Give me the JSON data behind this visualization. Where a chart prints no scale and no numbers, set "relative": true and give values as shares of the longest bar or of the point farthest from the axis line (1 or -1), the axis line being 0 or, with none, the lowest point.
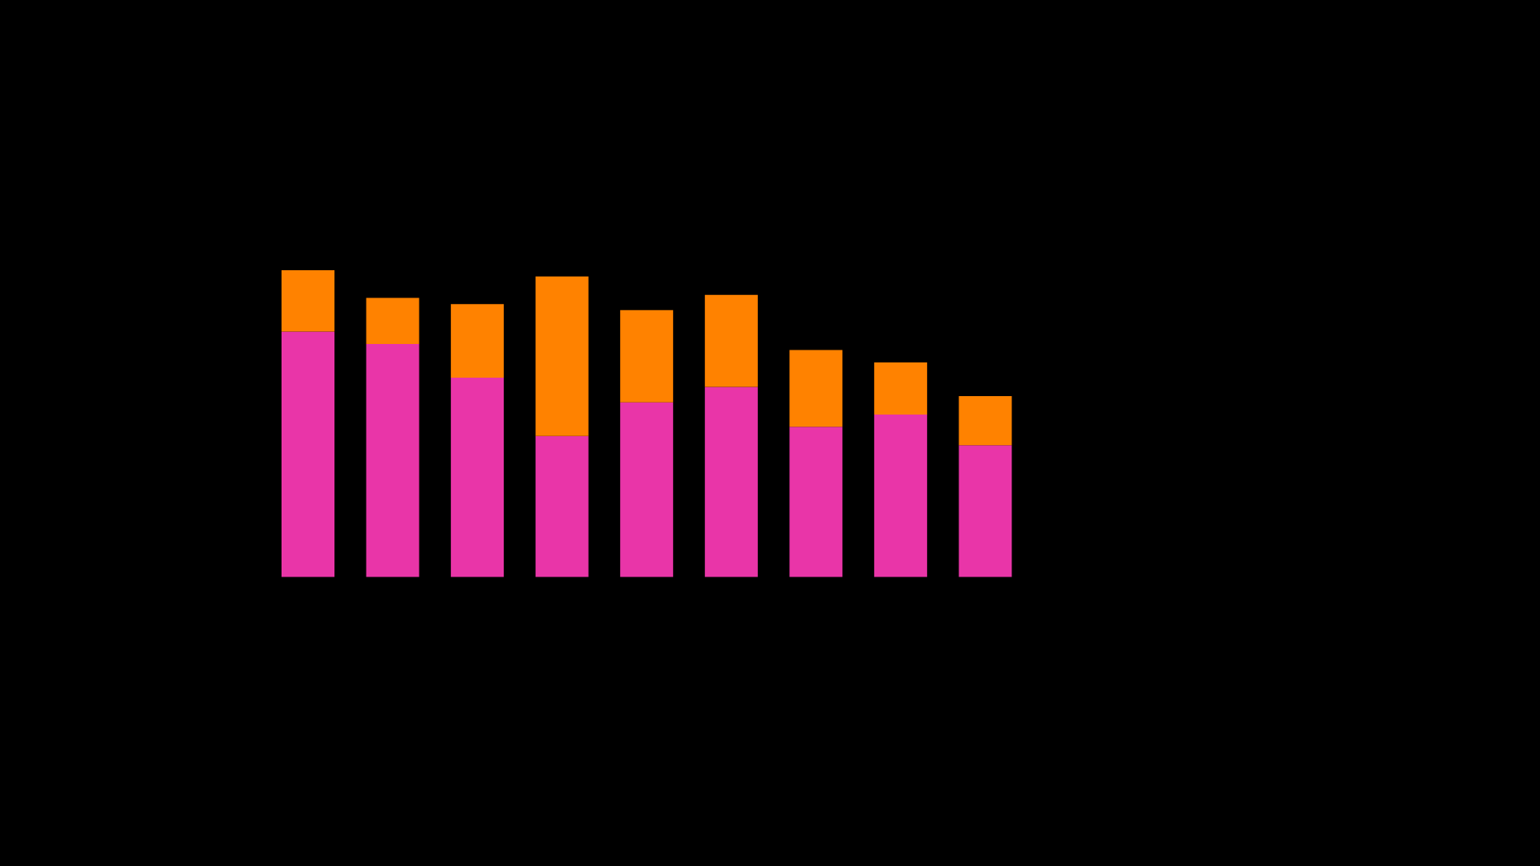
{
  "chart_data": {
    "type": "bar",
    "relative": true,
    "stacked": true,
    "categories": [
      null,
      null,
      null,
      null,
      null,
      null,
      null,
      null,
      null
    ],
    "series": [
      {
        "color": "#e935a8",
        "values": [
          0.8,
          0.76,
          0.65,
          0.46,
          0.57,
          0.62,
          0.49,
          0.53,
          0.43
        ]
      },
      {
        "color": "#ff8200",
        "values": [
          0.2,
          0.15,
          0.24,
          0.52,
          0.3,
          0.3,
          0.25,
          0.17,
          0.16
        ]
      }
    ]
  }
}
